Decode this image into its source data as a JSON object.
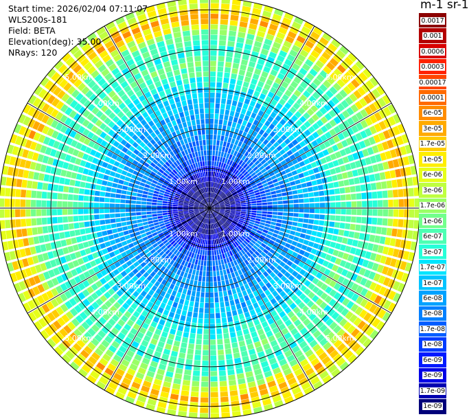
{
  "info": {
    "start_time": "Start time: 2026/02/04 07:11:07",
    "instrument": "WLS200s-181",
    "field": "Field: BETA",
    "elevation": "Elevation(deg): 35.00",
    "nrays": "NRays: 120"
  },
  "colorbar": {
    "title": "m-1 sr-1",
    "labels": [
      "0.0017",
      "0.001",
      "0.0006",
      "0.0003",
      "0.00017",
      "0.0001",
      "6e-05",
      "3e-05",
      "1.7e-05",
      "1e-05",
      "6e-06",
      "3e-06",
      "1.7e-06",
      "1e-06",
      "6e-07",
      "3e-07",
      "1.7e-07",
      "1e-07",
      "6e-08",
      "3e-08",
      "1.7e-08",
      "1e-08",
      "6e-09",
      "3e-09",
      "1.7e-09",
      "1e-09"
    ],
    "colors": [
      "#8b0000",
      "#b30000",
      "#d80000",
      "#ff2200",
      "#ff4400",
      "#ff6a00",
      "#ff8c00",
      "#ffaa00",
      "#ffcc00",
      "#ffee00",
      "#e6ff19",
      "#bfff40",
      "#99ff66",
      "#73ff8c",
      "#4dffb3",
      "#26ffd9",
      "#00e5ff",
      "#00c4ff",
      "#00a2ff",
      "#0080ff",
      "#005eff",
      "#003cff",
      "#001aff",
      "#0000e6",
      "#0000b0",
      "#00007a"
    ]
  },
  "chart_data": {
    "type": "heatmap",
    "projection": "polar PPI",
    "field": "BETA",
    "units": "m-1 sr-1",
    "elevation_deg": 35.0,
    "nrays": 120,
    "range_rings_km": [
      1,
      2,
      3,
      4,
      5
    ],
    "range_ring_labels": [
      "1.00km",
      "2.00km",
      "3.00km",
      "4.00km",
      "5.00km"
    ],
    "max_range_km": 5.3,
    "radial_profile": {
      "range_km": [
        0.0,
        0.5,
        0.9,
        1.1,
        1.6,
        2.2,
        2.8,
        3.2,
        3.6,
        4.0,
        4.4,
        4.8,
        5.0,
        5.3
      ],
      "beta": [
        1e-09,
        1e-09,
        3e-09,
        1e-08,
        3e-08,
        6e-08,
        1e-07,
        3e-07,
        1e-06,
        3e-07,
        1e-06,
        3e-05,
        1e-05,
        3e-06
      ]
    },
    "spoke_angles_deg": [
      0,
      30,
      60,
      90,
      120,
      150,
      180,
      210,
      240,
      270,
      300,
      330
    ],
    "ring_label_angles_deg": [
      45,
      135,
      225,
      315
    ]
  }
}
